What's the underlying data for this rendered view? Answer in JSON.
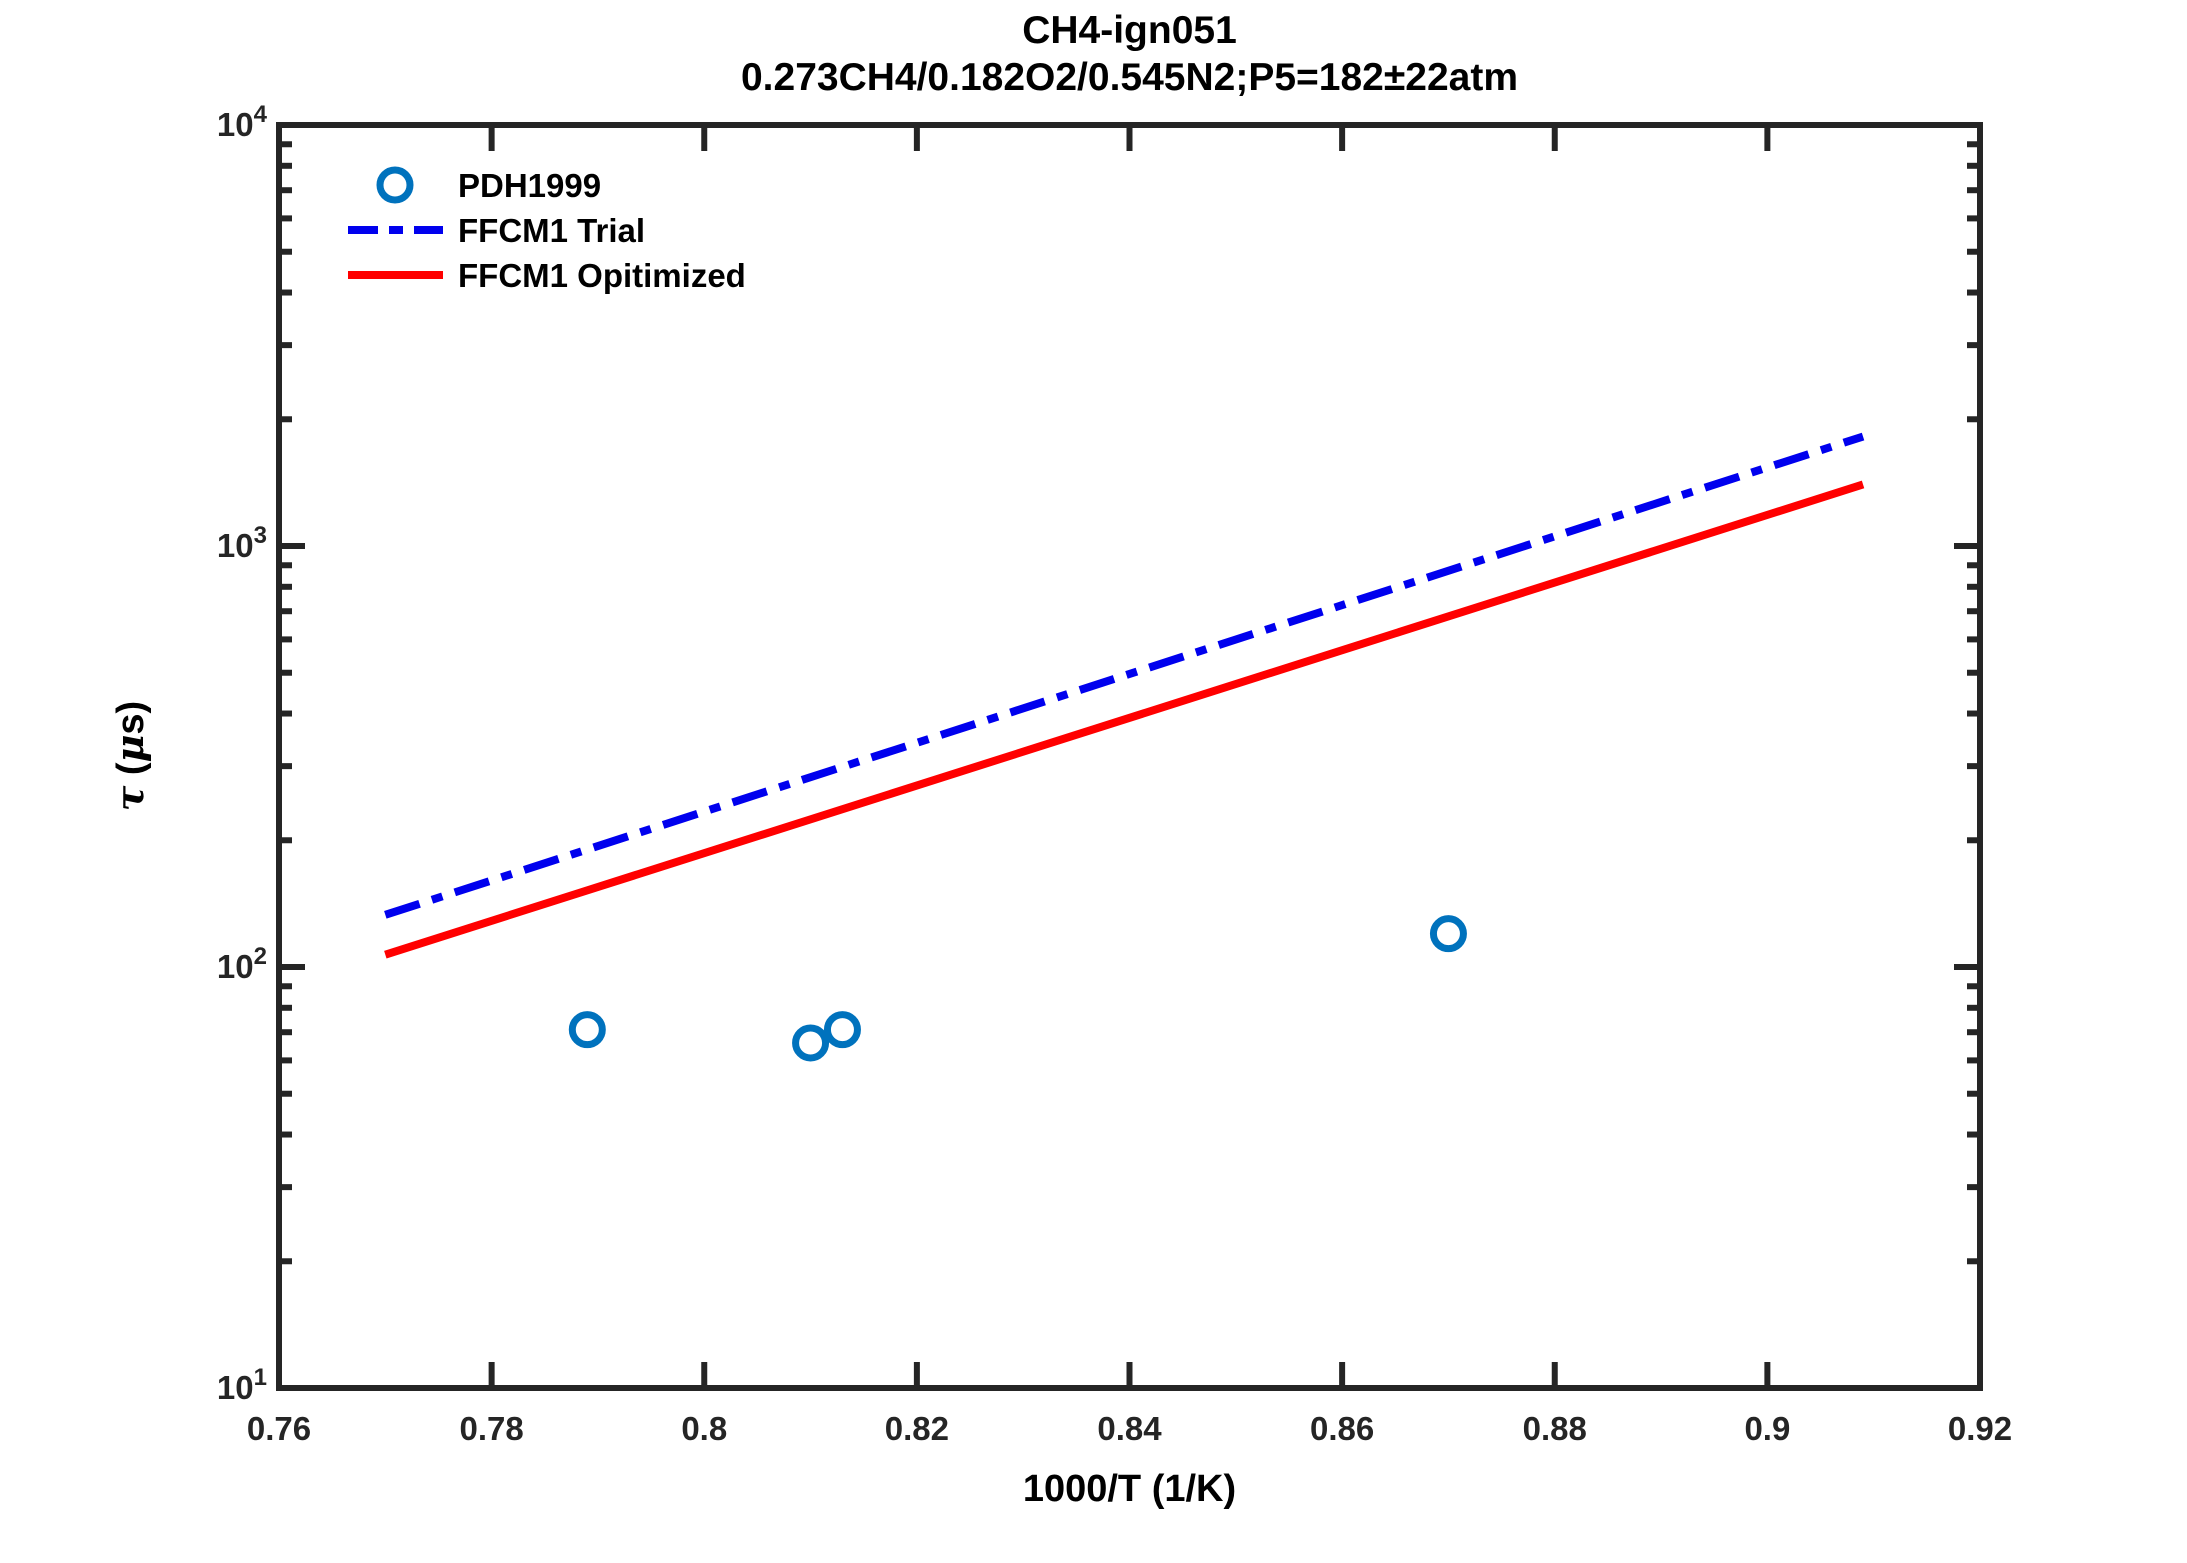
{
  "figure": {
    "background": "#ffffff",
    "frame_color": "#252525",
    "text_color": "#000000"
  },
  "chart_data": {
    "type": "line+scatter",
    "title": "CH4-ign051",
    "subtitle": "0.273CH4/0.182O2/0.545N2;P5=182±22atm",
    "xlabel": "1000/T (1/K)",
    "ylabel": "τ (μs)",
    "grid": false,
    "x_axis": {
      "min": 0.76,
      "max": 0.92,
      "ticks": [
        0.76,
        0.78,
        0.8,
        0.82,
        0.84,
        0.86,
        0.88,
        0.9,
        0.92
      ],
      "tick_labels": [
        "0.76",
        "0.78",
        "0.8",
        "0.82",
        "0.84",
        "0.86",
        "0.88",
        "0.9",
        "0.92"
      ]
    },
    "y_axis": {
      "scale": "log",
      "min": 10,
      "max": 10000,
      "tick_exponents": [
        1,
        2,
        3,
        4
      ],
      "minor_tick_mantissas": [
        2,
        3,
        4,
        5,
        6,
        7,
        8,
        9
      ]
    },
    "series": [
      {
        "name": "PDH1999",
        "type": "scatter",
        "marker": "circle",
        "color": "#0072BD",
        "points": [
          [
            0.789,
            71
          ],
          [
            0.81,
            66
          ],
          [
            0.813,
            71
          ],
          [
            0.87,
            120
          ]
        ]
      },
      {
        "name": "FFCM1 Trial",
        "type": "line",
        "style": "dash-dot",
        "color": "#0000EE",
        "points": [
          [
            0.77,
            133
          ],
          [
            0.909,
            1820
          ]
        ]
      },
      {
        "name": "FFCM1 Opitimized",
        "type": "line",
        "style": "solid",
        "color": "#FF0000",
        "points": [
          [
            0.77,
            107
          ],
          [
            0.909,
            1400
          ]
        ]
      }
    ],
    "legend": {
      "position": "top-left",
      "box": false,
      "entries": [
        "PDH1999",
        "FFCM1 Trial",
        "FFCM1 Opitimized"
      ]
    }
  }
}
